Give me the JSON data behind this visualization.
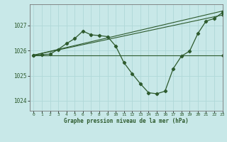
{
  "title": "Graphe pression niveau de la mer (hPa)",
  "bg_color": "#c8e8e8",
  "grid_color": "#b0d8d8",
  "line_color": "#2d5a2d",
  "xlim": [
    -0.5,
    23
  ],
  "ylim": [
    1023.6,
    1027.85
  ],
  "yticks": [
    1024,
    1025,
    1026,
    1027
  ],
  "xticks": [
    0,
    1,
    2,
    3,
    4,
    5,
    6,
    7,
    8,
    9,
    10,
    11,
    12,
    13,
    14,
    15,
    16,
    17,
    18,
    19,
    20,
    21,
    22,
    23
  ],
  "series": [
    {
      "x": [
        0,
        1,
        2,
        3,
        4,
        5,
        6,
        7,
        8,
        9,
        10,
        11,
        12,
        13,
        14,
        15,
        16,
        17,
        18,
        19,
        20,
        21,
        22,
        23
      ],
      "y": [
        1025.82,
        1025.84,
        1025.86,
        1026.05,
        1026.28,
        1026.48,
        1026.78,
        1026.63,
        1026.6,
        1026.56,
        1026.18,
        1025.52,
        1025.08,
        1024.68,
        1024.32,
        1024.28,
        1024.38,
        1025.28,
        1025.78,
        1025.98,
        1026.68,
        1027.18,
        1027.28,
        1027.52
      ]
    },
    {
      "x": [
        0,
        23
      ],
      "y": [
        1025.82,
        1027.58
      ]
    },
    {
      "x": [
        0,
        23
      ],
      "y": [
        1025.82,
        1027.42
      ]
    },
    {
      "x": [
        0,
        23
      ],
      "y": [
        1025.82,
        1025.82
      ]
    }
  ]
}
